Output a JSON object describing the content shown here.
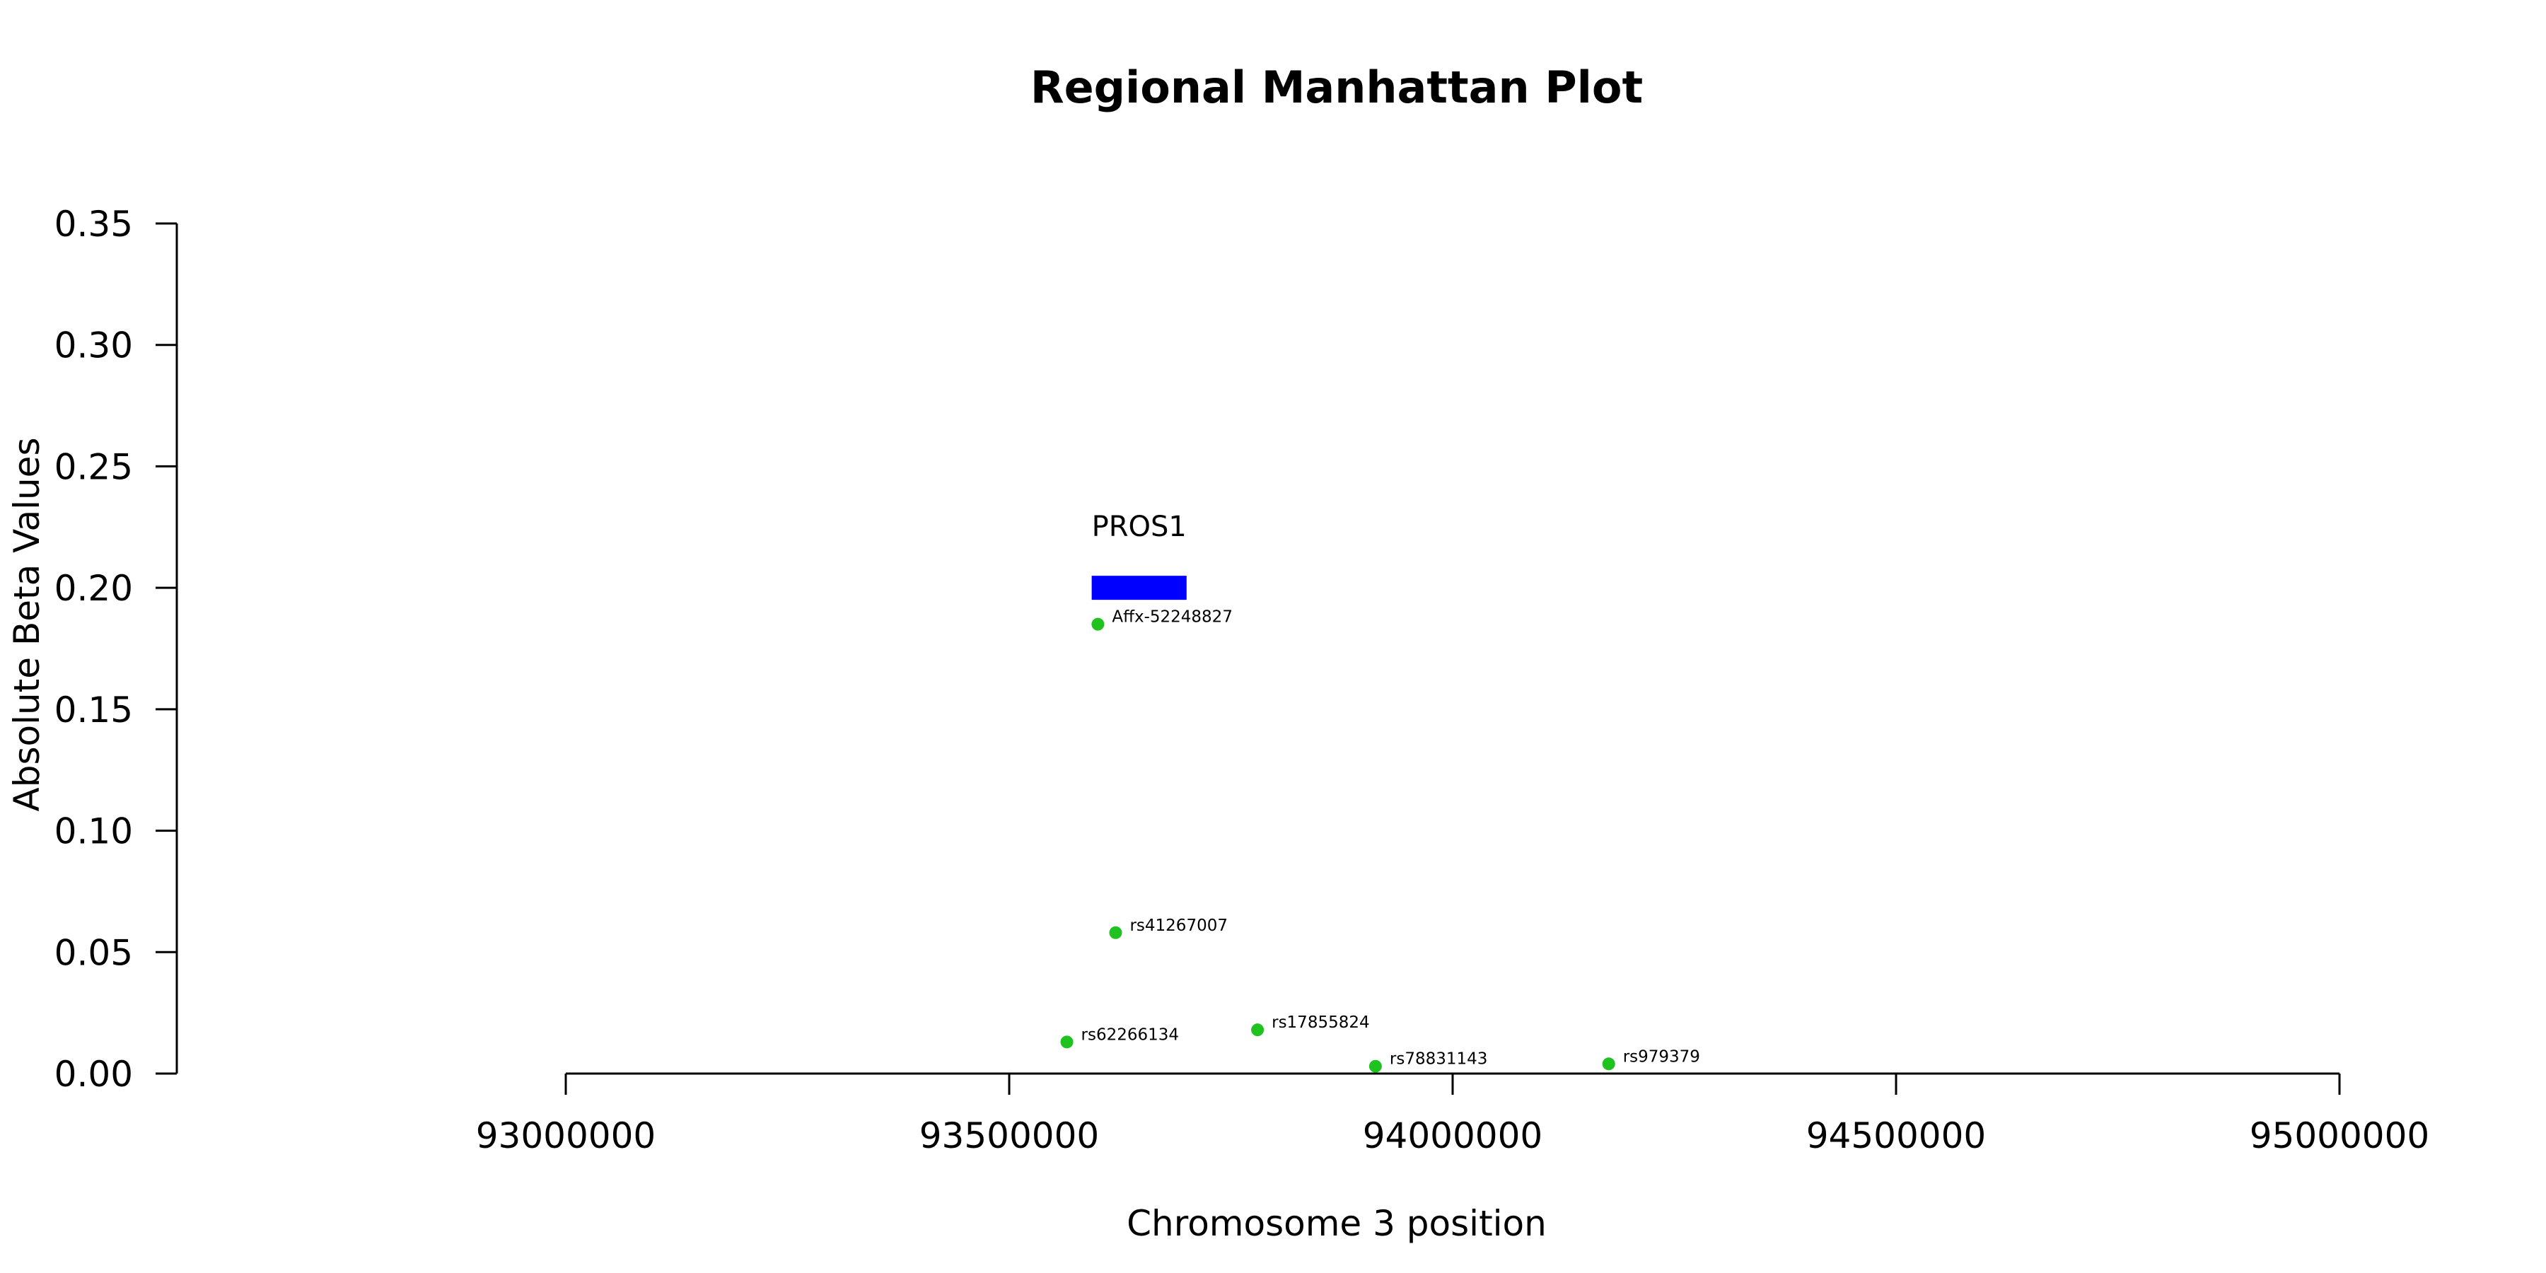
{
  "chart_data": {
    "type": "scatter",
    "title": "Regional Manhattan Plot",
    "xlabel": "Chromosome 3 position",
    "ylabel": "Absolute Beta Values",
    "xlim": [
      93000000,
      95000000
    ],
    "ylim": [
      0,
      0.35
    ],
    "x_ticks": [
      93000000,
      93500000,
      94000000,
      94500000,
      95000000
    ],
    "y_ticks": [
      0.0,
      0.05,
      0.1,
      0.15,
      0.2,
      0.25,
      0.3,
      0.35
    ],
    "x_tick_labels": [
      "93000000",
      "93500000",
      "94000000",
      "94500000",
      "95000000"
    ],
    "y_tick_labels": [
      "0.00",
      "0.05",
      "0.10",
      "0.15",
      "0.20",
      "0.25",
      "0.30",
      "0.35"
    ],
    "grid": false,
    "point_color": "#1fc21f",
    "gene_color": "#0000ff",
    "points": [
      {
        "label": "Affx-52248827",
        "x": 93600000,
        "y": 0.185
      },
      {
        "label": "rs41267007",
        "x": 93620000,
        "y": 0.058
      },
      {
        "label": "rs62266134",
        "x": 93565000,
        "y": 0.013
      },
      {
        "label": "rs17855824",
        "x": 93780000,
        "y": 0.018
      },
      {
        "label": "rs78831143",
        "x": 93913000,
        "y": 0.003
      },
      {
        "label": "rs979379",
        "x": 94176000,
        "y": 0.004
      }
    ],
    "genes": [
      {
        "name": "PROS1",
        "start": 93593000,
        "end": 93700000,
        "y": 0.2
      }
    ]
  }
}
